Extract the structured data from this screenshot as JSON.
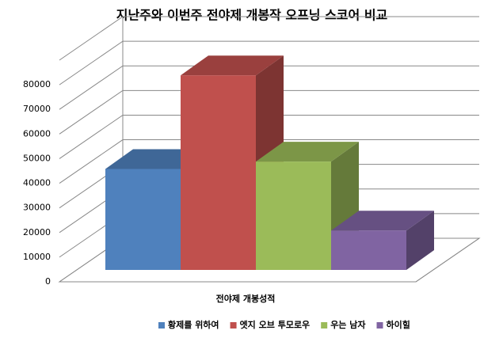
{
  "chart_data": {
    "type": "bar3d",
    "title": "지난주와 이번주 전야제 개봉작 오프닝 스코어 비교",
    "categories": [
      "전야제 개봉성적"
    ],
    "series": [
      {
        "name": "황제를 위하여",
        "color": "#4f81bd",
        "values": [
          41000
        ]
      },
      {
        "name": "엣지 오브 투모로우",
        "color": "#c0504d",
        "values": [
          79000
        ]
      },
      {
        "name": "우는 남자",
        "color": "#9bbb59",
        "values": [
          44000
        ]
      },
      {
        "name": "하이힐",
        "color": "#8064a2",
        "values": [
          16000
        ]
      }
    ],
    "ylim": [
      0,
      90000
    ],
    "yticks": [
      0,
      10000,
      20000,
      30000,
      40000,
      50000,
      60000,
      70000,
      80000
    ],
    "grid": true,
    "legend": "bottom-right"
  }
}
